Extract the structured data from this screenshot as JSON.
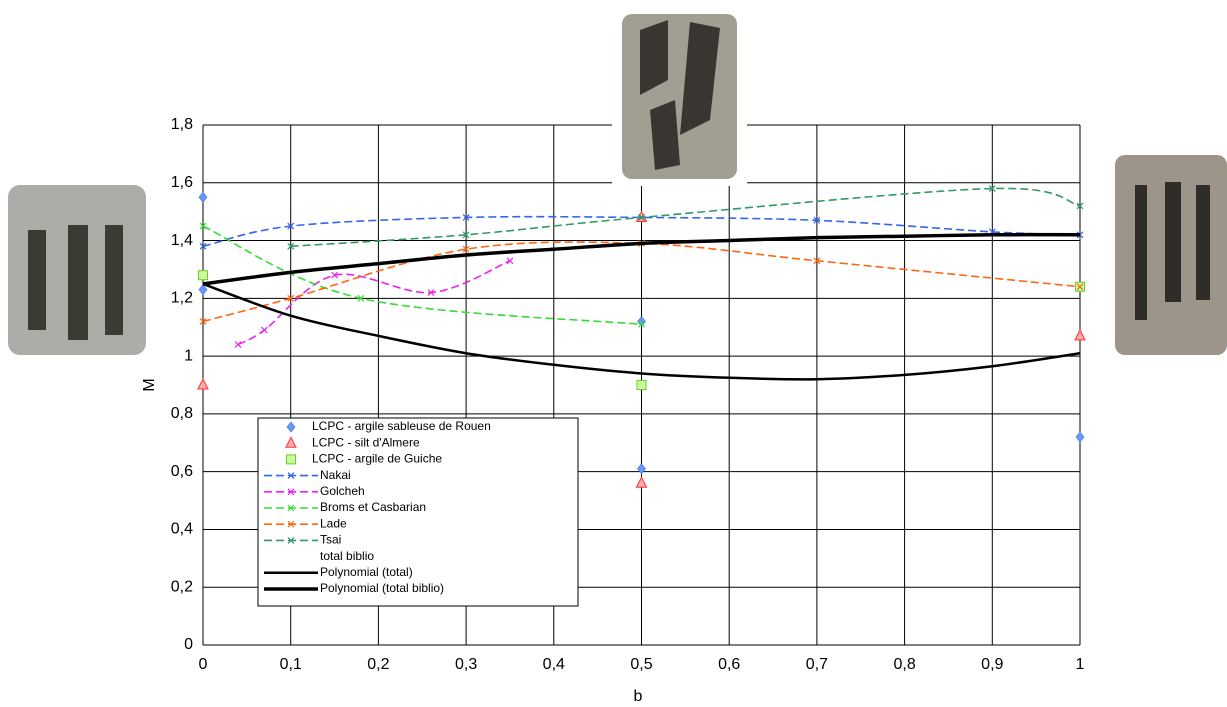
{
  "chart_data": {
    "type": "scatter-line",
    "x_label": "b",
    "y_label": "M",
    "xlim": [
      0,
      1
    ],
    "ylim": [
      0,
      1.8
    ],
    "xticks": [
      0,
      {
        "value": 0.1,
        "label": "0,1"
      },
      {
        "value": 0.2,
        "label": "0,2"
      },
      {
        "value": 0.3,
        "label": "0,3"
      },
      {
        "value": 0.4,
        "label": "0,4"
      },
      {
        "value": 0.5,
        "label": "0,5"
      },
      {
        "value": 0.6,
        "label": "0,6"
      },
      {
        "value": 0.7,
        "label": "0,7"
      },
      {
        "value": 0.8,
        "label": "0,8"
      },
      {
        "value": 0.9,
        "label": "0,9"
      },
      1
    ],
    "yticks": [
      0,
      {
        "value": 0.2,
        "label": "0,2"
      },
      {
        "value": 0.4,
        "label": "0,4"
      },
      {
        "value": 0.6,
        "label": "0,6"
      },
      {
        "value": 0.8,
        "label": "0,8"
      },
      1,
      {
        "value": 1.2,
        "label": "1,2"
      },
      {
        "value": 1.4,
        "label": "1,4"
      },
      {
        "value": 1.6,
        "label": "1,6"
      },
      {
        "value": 1.8,
        "label": "1,8"
      }
    ],
    "grid": true,
    "series": [
      {
        "name": "LCPC - argile sableuse de Rouen",
        "style": "diamond",
        "color": "#6699ff",
        "x": [
          0,
          0,
          0.5,
          0.5,
          1
        ],
        "values": [
          1.55,
          1.23,
          1.12,
          0.61,
          0.72
        ]
      },
      {
        "name": "LCPC - silt d'Almere",
        "style": "triangle",
        "color": "#ff3333",
        "x": [
          0,
          0.5,
          0.5,
          1
        ],
        "values": [
          0.9,
          1.48,
          0.56,
          1.07
        ]
      },
      {
        "name": "LCPC - argile de Guiche",
        "style": "square",
        "color": "#66cc33",
        "x": [
          0,
          0.5,
          1
        ],
        "values": [
          1.28,
          0.9,
          1.24
        ]
      },
      {
        "name": "Nakai",
        "style": "dashed",
        "color": "#3366ee",
        "x": [
          0,
          0.1,
          0.3,
          0.5,
          0.7,
          0.9,
          1
        ],
        "values": [
          1.38,
          1.45,
          1.48,
          1.48,
          1.47,
          1.43,
          1.42
        ]
      },
      {
        "name": "Golcheh",
        "style": "dashed",
        "color": "#ee22ee",
        "x": [
          0.04,
          0.07,
          0.15,
          0.26,
          0.35
        ],
        "values": [
          1.04,
          1.09,
          1.28,
          1.22,
          1.33
        ]
      },
      {
        "name": "Broms et Casbarian",
        "style": "dashed",
        "color": "#33dd33",
        "x": [
          0,
          0.18,
          0.5
        ],
        "values": [
          1.45,
          1.2,
          1.11
        ]
      },
      {
        "name": "Lade",
        "style": "dashed",
        "color": "#ff6611",
        "x": [
          0,
          0.1,
          0.3,
          0.5,
          0.7,
          1
        ],
        "values": [
          1.12,
          1.2,
          1.37,
          1.39,
          1.33,
          1.24
        ]
      },
      {
        "name": "Tsai",
        "style": "dashed",
        "color": "#339966",
        "x": [
          0.1,
          0.3,
          0.5,
          0.9,
          1
        ],
        "values": [
          1.38,
          1.42,
          1.48,
          1.58,
          1.52
        ]
      },
      {
        "name": "total biblio",
        "style": "none",
        "color": "#000000",
        "x": [],
        "values": []
      },
      {
        "name": "Polynomial (total)",
        "style": "solid",
        "color": "#000000",
        "x": [
          0,
          0.1,
          0.2,
          0.3,
          0.4,
          0.5,
          0.6,
          0.7,
          0.8,
          0.9,
          1
        ],
        "values": [
          1.25,
          1.14,
          1.07,
          1.01,
          0.97,
          0.94,
          0.925,
          0.92,
          0.935,
          0.965,
          1.01
        ]
      },
      {
        "name": "Polynomial (total biblio)",
        "style": "thick",
        "color": "#000000",
        "x": [
          0,
          0.1,
          0.2,
          0.3,
          0.4,
          0.5,
          0.6,
          0.7,
          0.8,
          0.9,
          1
        ],
        "values": [
          1.25,
          1.29,
          1.32,
          1.35,
          1.37,
          1.39,
          1.4,
          1.41,
          1.415,
          1.42,
          1.42
        ]
      }
    ]
  }
}
